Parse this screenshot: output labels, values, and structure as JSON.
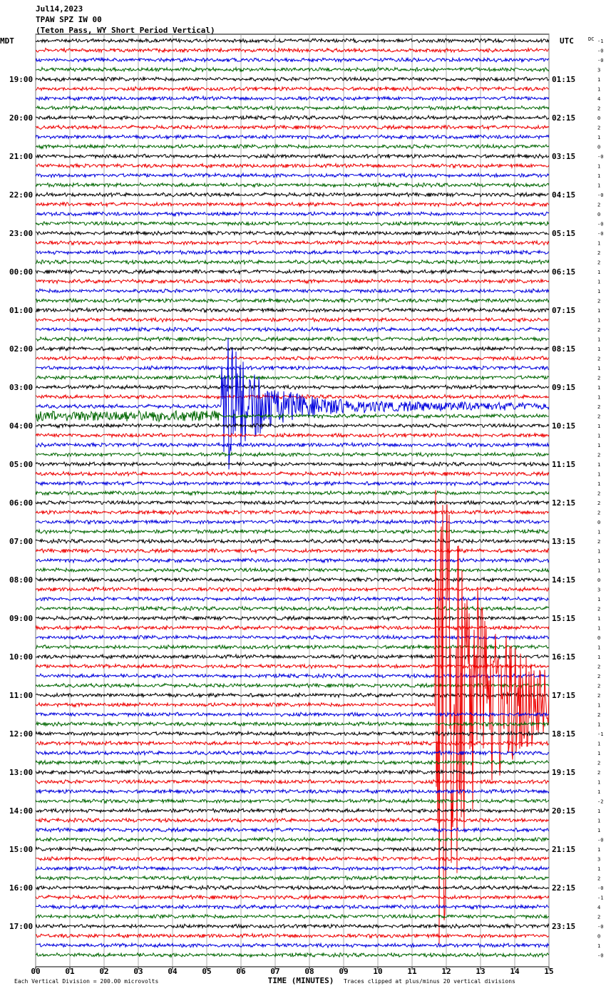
{
  "header": {
    "date": "Jul14,2023",
    "station": "TPAW SPZ IW 00",
    "description": "(Teton Pass, WY Short Period Vertical)",
    "left_timezone": "MDT",
    "right_timezone": "UTC",
    "dc_label": "DC"
  },
  "left_time_labels": [
    "19:00",
    "20:00",
    "21:00",
    "22:00",
    "23:00",
    "00:00",
    "01:00",
    "02:00",
    "03:00",
    "04:00",
    "05:00",
    "06:00",
    "07:00",
    "08:00",
    "09:00",
    "10:00",
    "11:00",
    "12:00",
    "13:00",
    "14:00",
    "15:00",
    "16:00",
    "17:00"
  ],
  "right_time_labels": [
    "01:15",
    "02:15",
    "03:15",
    "04:15",
    "05:15",
    "06:15",
    "07:15",
    "08:15",
    "09:15",
    "10:15",
    "11:15",
    "12:15",
    "13:15",
    "14:15",
    "15:15",
    "16:15",
    "17:15",
    "18:15",
    "19:15",
    "20:15",
    "21:15",
    "22:15",
    "23:15"
  ],
  "trace_offsets": [
    "-1",
    "-0",
    "-0",
    "3",
    "1",
    "1",
    "4",
    "2",
    "0",
    "2",
    "1",
    "0",
    "-0",
    "1",
    "1",
    "1",
    "-0",
    "2",
    "0",
    "-0",
    "-0",
    "1",
    "2",
    "2",
    "1",
    "1",
    "1",
    "2",
    "1",
    "1",
    "2",
    "1",
    "1",
    "2",
    "1",
    "2",
    "1",
    "1",
    "2",
    "2",
    "1",
    "1",
    "1",
    "2",
    "1",
    "1",
    "1",
    "2",
    "2",
    "2",
    "0",
    "1",
    "2",
    "1",
    "1",
    "1",
    "0",
    "3",
    "1",
    "2",
    "1",
    "1",
    "0",
    "1",
    "1",
    "2",
    "2",
    "2",
    "2",
    "1",
    "2",
    "1",
    "-1",
    "1",
    "1",
    "2",
    "2",
    "1",
    "1",
    "-2",
    "1",
    "1",
    "1",
    "-0",
    "1",
    "3",
    "1",
    "2",
    "-0",
    "-1",
    "4",
    "2",
    "-0",
    "0",
    "1",
    "-0"
  ],
  "x_axis": {
    "ticks": [
      "00",
      "01",
      "02",
      "03",
      "04",
      "05",
      "06",
      "07",
      "08",
      "09",
      "10",
      "11",
      "12",
      "13",
      "14",
      "15"
    ],
    "title": "TIME (MINUTES)"
  },
  "footer": {
    "scale_note": "Each Vertical Division =  200.00 microvolts",
    "clip_note": "Traces clipped at plus/minus 20 vertical divisions"
  }
}
